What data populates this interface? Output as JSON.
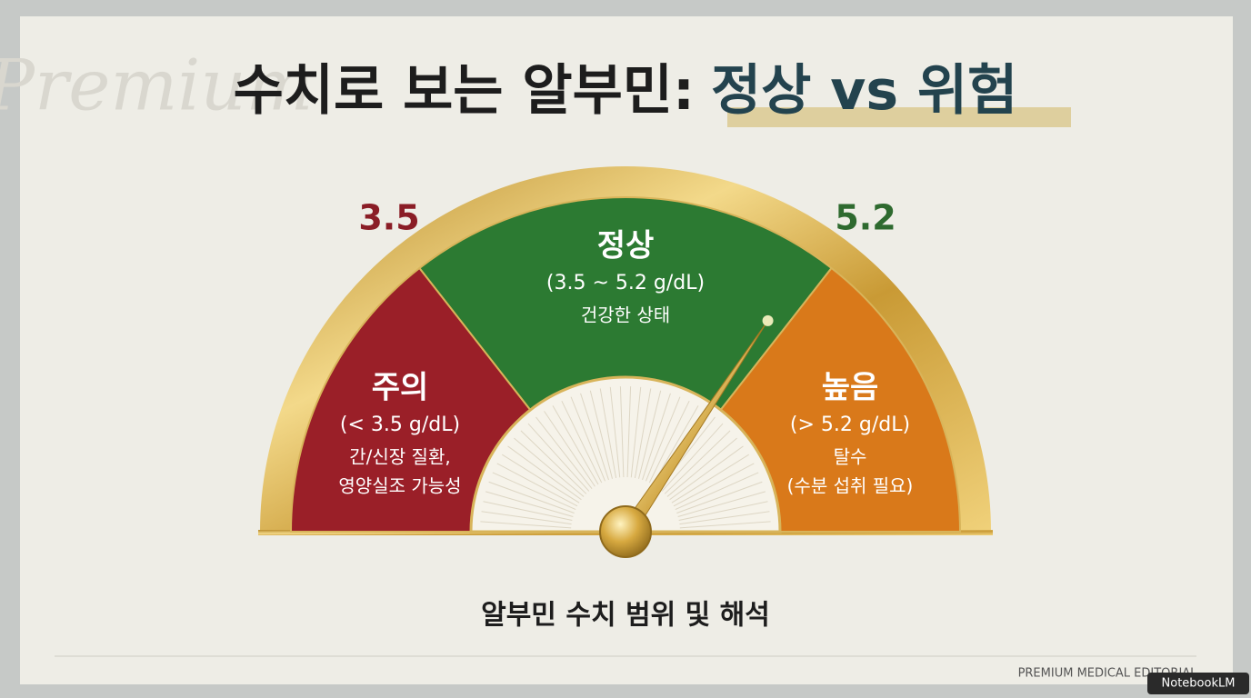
{
  "header": {
    "watermark": "Premium",
    "title": "수치로 보는 알부민:",
    "title_highlight": "정상 vs 위험"
  },
  "gauge": {
    "low_marker": "3.5",
    "high_marker": "5.2",
    "segments": [
      {
        "label": "주의",
        "range": "(< 3.5 g/dL)",
        "notes": [
          "간/신장 질환,",
          "영양실조 가능성"
        ]
      },
      {
        "label": "정상",
        "range": "(3.5 ~ 5.2 g/dL)",
        "notes": [
          "건강한 상태"
        ]
      },
      {
        "label": "높음",
        "range": "(> 5.2 g/dL)",
        "notes": [
          "탈수",
          "(수분 섭취 필요)"
        ]
      }
    ],
    "caption": "알부민 수치 범위 및 해석"
  },
  "footer": {
    "brand": "PREMIUM MEDICAL EDITORIAL",
    "badge": "NotebookLM"
  }
}
